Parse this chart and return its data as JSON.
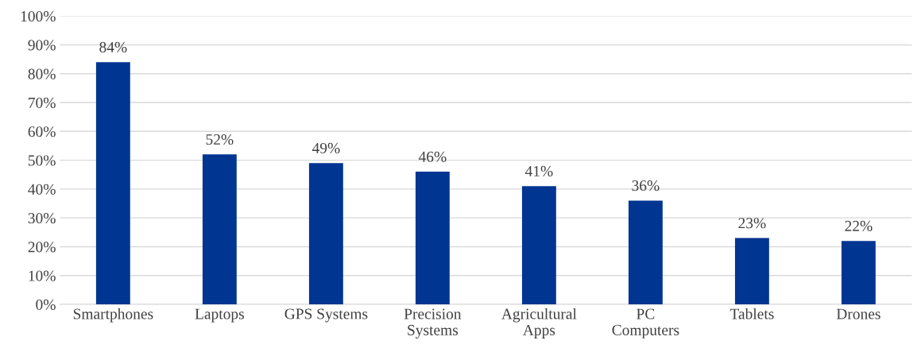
{
  "chart_data": {
    "type": "bar",
    "categories": [
      "Smartphones",
      "Laptops",
      "GPS Systems",
      "Precision Systems",
      "Agricultural Apps",
      "PC Computers",
      "Tablets",
      "Drones"
    ],
    "values": [
      84,
      52,
      49,
      46,
      41,
      36,
      23,
      22
    ],
    "value_labels": [
      "84%",
      "52%",
      "49%",
      "46%",
      "41%",
      "36%",
      "23%",
      "22%"
    ],
    "color": "#003591",
    "ylim": [
      0,
      100
    ],
    "yticks": [
      {
        "value": 0,
        "label": "0%"
      },
      {
        "value": 10,
        "label": "10%"
      },
      {
        "value": 20,
        "label": "20%"
      },
      {
        "value": 30,
        "label": "30%"
      },
      {
        "value": 40,
        "label": "40%"
      },
      {
        "value": 50,
        "label": "50%"
      },
      {
        "value": 60,
        "label": "60%"
      },
      {
        "value": 70,
        "label": "70%"
      },
      {
        "value": 80,
        "label": "80%"
      },
      {
        "value": 90,
        "label": "90%"
      },
      {
        "value": 100,
        "label": "100%"
      }
    ],
    "grid": "y",
    "legend": false
  }
}
